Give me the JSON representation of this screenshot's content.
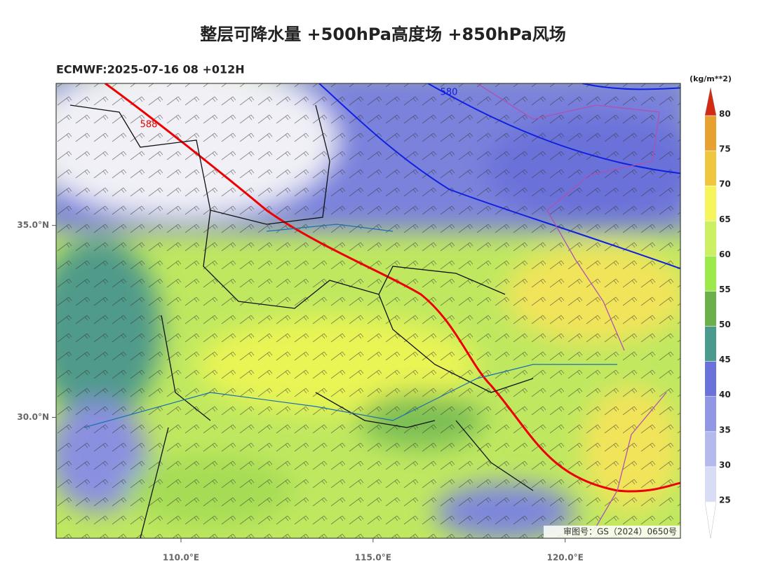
{
  "map": {
    "title": "整层可降水量 +500hPa高度场 +850hPa风场",
    "subtitle": "ECMWF:2025-07-16 08 +012H",
    "xlim": [
      106.75,
      123
    ],
    "ylim": [
      26.85,
      38.7
    ],
    "xticks": [
      {
        "value": 110,
        "label": "110.0°E"
      },
      {
        "value": 115,
        "label": "115.0°E"
      },
      {
        "value": 120,
        "label": "120.0°E"
      }
    ],
    "yticks": [
      {
        "value": 35,
        "label": "35.0°N"
      },
      {
        "value": 30,
        "label": "30.0°N"
      }
    ],
    "contour_labels": [
      588,
      580
    ],
    "watermark": "审图号：GS（2024）0650号",
    "colorbar": {
      "unit": "(kg/m**2)",
      "ticks": [
        25,
        30,
        35,
        40,
        45,
        50,
        55,
        60,
        65,
        70,
        75,
        80
      ],
      "colors": [
        "#d9dcf5",
        "#b4b9ee",
        "#9097e4",
        "#6b72d9",
        "#4a9a8e",
        "#6cb04c",
        "#9cea4a",
        "#cbf062",
        "#f6f65c",
        "#f0c63e",
        "#e8a030"
      ],
      "over_color": "#d42a14",
      "under_color": "#ffffff"
    }
  }
}
